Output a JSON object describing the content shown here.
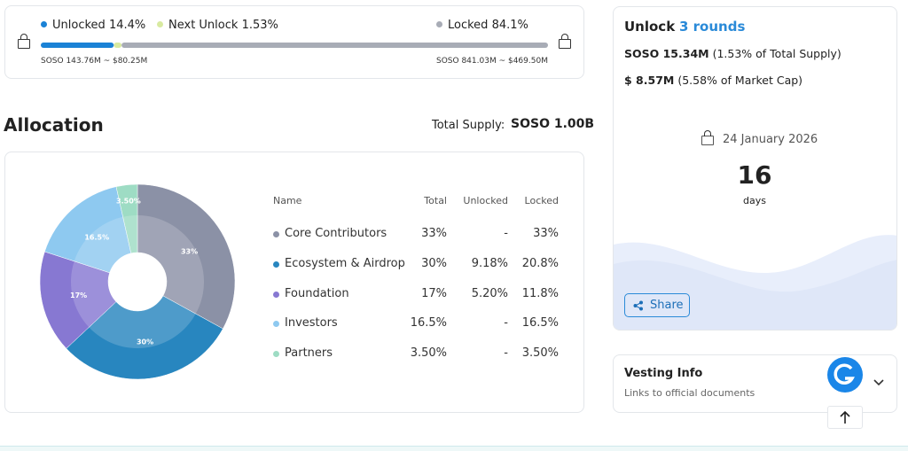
{
  "progress": {
    "names": [
      "Unlocked",
      "Next Unlock",
      "Locked"
    ],
    "values": [
      14.4,
      1.53,
      84.1
    ],
    "value_labels": [
      "14.4%",
      "1.53%",
      "84.1%"
    ],
    "colors": [
      "#1a82d6",
      "#d8eaa0",
      "#a8acb6"
    ],
    "unlocked_amount": "SOSO 143.76M ~ $80.25M",
    "locked_amount": "SOSO 841.03M ~ $469.50M"
  },
  "allocation": {
    "title": "Allocation",
    "total_supply_label": "Total Supply:",
    "total_supply_value": "SOSO 1.00B",
    "pie": {
      "type": "pie",
      "categories": [
        "Core Contributors",
        "Ecosystem & Airdrop",
        "Foundation",
        "Investors",
        "Partners"
      ],
      "values": [
        33,
        30,
        17,
        16.5,
        3.5
      ],
      "value_labels": [
        "33%",
        "30%",
        "17%",
        "16.5%",
        "3.50%"
      ],
      "colors": [
        "#8b91a6",
        "#2886bf",
        "#8778d2",
        "#8ec9f0",
        "#9edcc4"
      ]
    },
    "table": {
      "headers": [
        "Name",
        "Total",
        "Unlocked",
        "Locked"
      ],
      "rows": [
        [
          "Core Contributors",
          "33%",
          "-",
          "33%"
        ],
        [
          "Ecosystem & Airdrop",
          "30%",
          "9.18%",
          "20.8%"
        ],
        [
          "Foundation",
          "17%",
          "5.20%",
          "11.8%"
        ],
        [
          "Investors",
          "16.5%",
          "-",
          "16.5%"
        ],
        [
          "Partners",
          "3.50%",
          "-",
          "3.50%"
        ]
      ]
    }
  },
  "unlock": {
    "title": "Unlock",
    "rounds": "3 rounds",
    "supply_amount": "SOSO 15.34M",
    "supply_note": "(1.53% of Total Supply)",
    "cap_amount": "$ 8.57M",
    "cap_note": "(5.58% of Market Cap)",
    "date": "24 January 2026",
    "days_count": "16",
    "days_label": "days",
    "share": "Share"
  },
  "vesting": {
    "title": "Vesting Info",
    "subtitle": "Links to official documents"
  }
}
